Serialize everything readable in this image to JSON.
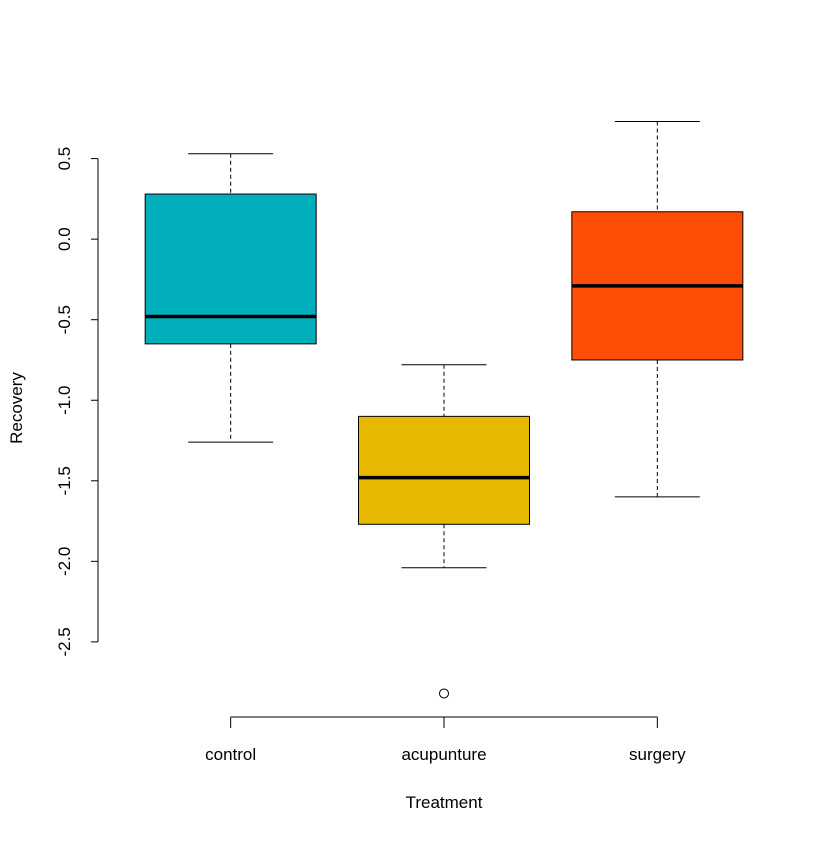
{
  "chart_data": {
    "type": "boxplot",
    "xlabel": "Treatment",
    "ylabel": "Recovery",
    "categories": [
      "control",
      "acupunture",
      "surgery"
    ],
    "colors": [
      "#00AFBB",
      "#E7B800",
      "#FC4E07"
    ],
    "stats": {
      "lower": [
        -1.26,
        -2.04,
        -1.6
      ],
      "q1": [
        -0.65,
        -1.77,
        -0.75
      ],
      "median": [
        -0.48,
        -1.48,
        -0.29
      ],
      "q3": [
        0.28,
        -1.1,
        0.17
      ],
      "upper": [
        0.53,
        -0.78,
        0.73
      ]
    },
    "outliers": [
      [],
      [
        -2.82
      ],
      []
    ],
    "ylim": [
      -2.96,
      0.87
    ],
    "yticks": [
      0.5,
      {
        "value": 0,
        "label": "0.0"
      },
      -0.5,
      {
        "value": -1,
        "label": "-1.0"
      },
      -1.5,
      {
        "value": -2,
        "label": "-2.0"
      },
      -2.5
    ]
  }
}
